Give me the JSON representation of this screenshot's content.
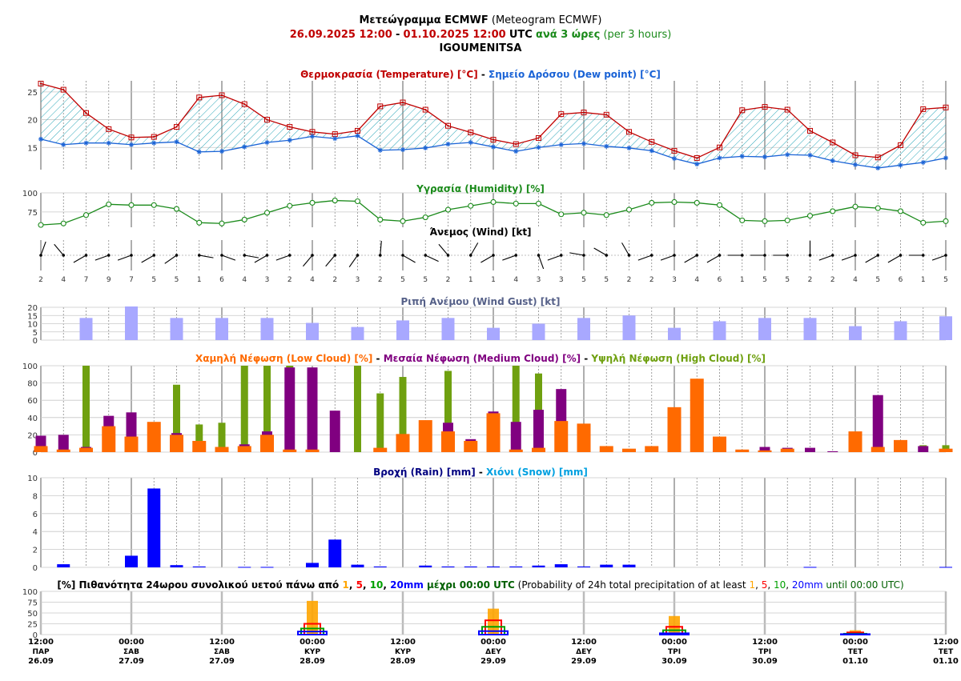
{
  "header": {
    "line1_bold": "Μετεώγραμμα ECMWF",
    "line1_normal": "(Meteogram ECMWF)",
    "line2_start": "26.09.2025 12:00",
    "line2_sep": "-",
    "line2_end": "01.10.2025 12:00",
    "line2_utc": "UTC",
    "line2_step_gr": "ανά 3 ώρες",
    "line2_step_en": "(per 3 hours)",
    "location": "IGOUMENITSA"
  },
  "colors": {
    "temperature": "#c00000",
    "dew": "#1a63d6",
    "humidity": "#1a8a1a",
    "gust": "#a8a8ff",
    "gust_title": "#556088",
    "low_cloud": "#ff6a00",
    "mid_cloud": "#800080",
    "high_cloud": "#6fa010",
    "rain": "#0000ff",
    "rain_title": "#000080",
    "snow_title": "#00a0e0",
    "prob1": "#ffa500",
    "prob5": "#ff0000",
    "prob10": "#00a000",
    "prob20": "#0000ff",
    "prob_title": "#000000"
  },
  "chart_data": [
    {
      "id": "temperature",
      "type": "line",
      "title_parts": [
        {
          "text": "Θερμοκρασία (Temperature) [°C]",
          "color": "#c00000"
        },
        {
          "text": " - ",
          "color": "#000000"
        },
        {
          "text": "Σημείο Δρόσου (Dew point) [°C]",
          "color": "#1a63d6"
        }
      ],
      "ylim": [
        11,
        27
      ],
      "yticks": [
        15,
        20,
        25
      ],
      "series": [
        {
          "name": "Temperature",
          "values": [
            26.5,
            25.4,
            21.2,
            18.3,
            16.8,
            16.9,
            18.7,
            24.0,
            24.4,
            22.8,
            20.0,
            18.7,
            17.8,
            17.4,
            18.0,
            22.4,
            23.1,
            21.8,
            18.9,
            17.7,
            16.4,
            15.6,
            16.7,
            21.0,
            21.3,
            20.9,
            17.8,
            16.0,
            14.4,
            13.1,
            15.0,
            21.7,
            22.3,
            21.8,
            18.0,
            15.9,
            13.6,
            13.2,
            15.4,
            21.9,
            22.2
          ]
        },
        {
          "name": "Dew point",
          "values": [
            16.5,
            15.5,
            15.8,
            15.8,
            15.5,
            15.8,
            16.0,
            14.2,
            14.3,
            15.1,
            15.9,
            16.3,
            17.0,
            16.6,
            17.1,
            14.5,
            14.6,
            14.9,
            15.6,
            15.9,
            15.1,
            14.3,
            15.0,
            15.5,
            15.7,
            15.2,
            14.9,
            14.4,
            13.0,
            12.0,
            13.1,
            13.4,
            13.3,
            13.7,
            13.6,
            12.6,
            11.9,
            11.3,
            11.8,
            12.3,
            13.1
          ]
        }
      ]
    },
    {
      "id": "humidity",
      "type": "line",
      "title_parts": [
        {
          "text": "Υγρασία (Humidity) [%]",
          "color": "#1a8a1a"
        }
      ],
      "ylim": [
        55,
        100
      ],
      "yticks": [
        75,
        100
      ],
      "series": [
        {
          "name": "Humidity",
          "values": [
            58,
            60,
            71,
            85,
            84,
            84,
            79,
            61,
            60,
            65,
            74,
            83,
            87,
            90,
            89,
            65,
            63,
            68,
            78,
            83,
            88,
            86,
            86,
            72,
            74,
            71,
            78,
            87,
            88,
            87,
            84,
            64,
            63,
            64,
            70,
            76,
            82,
            80,
            76,
            61,
            63
          ]
        }
      ]
    },
    {
      "id": "wind",
      "type": "scatter",
      "title_parts": [
        {
          "text": "Άνεμος (Wind) [kt]",
          "color": "#000000"
        }
      ],
      "speeds": [
        "2",
        "4",
        "7",
        "9",
        "7",
        "5",
        "5",
        "1",
        "6",
        "4",
        "3",
        "2",
        "4",
        "2",
        "3",
        "2",
        "5",
        "5",
        "2",
        "1",
        "1",
        "4",
        "3",
        "3",
        "5",
        "5",
        "2",
        "2",
        "3",
        "4",
        "6",
        "1",
        "5",
        "5",
        "2",
        "2",
        "4",
        "5",
        "6",
        "1",
        "5"
      ],
      "directions": [
        20,
        320,
        240,
        250,
        250,
        240,
        235,
        100,
        110,
        100,
        240,
        250,
        220,
        220,
        215,
        5,
        120,
        115,
        320,
        30,
        240,
        250,
        160,
        250,
        280,
        300,
        330,
        250,
        250,
        240,
        240,
        270,
        270,
        270,
        0,
        250,
        250,
        240,
        240,
        270,
        250
      ]
    },
    {
      "id": "gust",
      "type": "bar",
      "title_parts": [
        {
          "text": "Ριπή Ανέμου (Wind Gust) [kt]",
          "color": "#556088"
        }
      ],
      "ylim": [
        0,
        20
      ],
      "yticks": [
        0,
        5,
        10,
        15,
        20
      ],
      "indices": [
        2,
        4,
        6,
        8,
        10,
        12,
        14,
        16,
        18,
        20,
        22,
        24,
        26,
        28,
        30,
        32,
        34,
        36,
        38,
        40
      ],
      "values": [
        13.5,
        20.5,
        13.5,
        13.5,
        13.5,
        10.5,
        8.0,
        12.0,
        13.5,
        7.5,
        10.0,
        13.5,
        15.0,
        7.5,
        11.5,
        13.5,
        13.5,
        8.5,
        11.5,
        14.5
      ]
    },
    {
      "id": "clouds",
      "type": "bar",
      "title_parts": [
        {
          "text": "Χαμηλή Νέφωση (Low Cloud) [%]",
          "color": "#ff6a00"
        },
        {
          "text": " - ",
          "color": "#000000"
        },
        {
          "text": "Μεσαία Νέφωση (Medium Cloud) [%]",
          "color": "#800080"
        },
        {
          "text": " - ",
          "color": "#000000"
        },
        {
          "text": "Υψηλή Νέφωση (High Cloud) [%]",
          "color": "#6fa010"
        }
      ],
      "ylim": [
        0,
        100
      ],
      "yticks": [
        0,
        20,
        40,
        60,
        80,
        100
      ],
      "series": [
        {
          "name": "Low Cloud",
          "values": [
            7,
            3,
            5,
            30,
            18,
            35,
            20,
            13,
            6,
            7,
            20,
            3,
            3,
            0,
            0,
            5,
            21,
            37,
            24,
            13,
            45,
            3,
            5,
            36,
            33,
            7,
            4,
            7,
            52,
            85,
            18,
            3,
            2,
            4,
            0,
            0,
            24,
            6,
            14,
            0,
            4
          ]
        },
        {
          "name": "Medium Cloud",
          "values": [
            19,
            20,
            6,
            42,
            46,
            0,
            22,
            0,
            0,
            9,
            24,
            98,
            98,
            48,
            0,
            0,
            0,
            0,
            34,
            15,
            47,
            35,
            49,
            73,
            0,
            0,
            0,
            0,
            0,
            0,
            0,
            0,
            6,
            5,
            5,
            1,
            0,
            66,
            0,
            7,
            0
          ]
        },
        {
          "name": "High Cloud",
          "values": [
            0,
            0,
            100,
            0,
            0,
            0,
            78,
            32,
            34,
            100,
            100,
            100,
            0,
            0,
            100,
            68,
            87,
            0,
            94,
            0,
            41,
            100,
            91,
            0,
            0,
            0,
            0,
            0,
            0,
            0,
            0,
            0,
            0,
            0,
            0,
            0,
            0,
            0,
            0,
            8,
            8
          ]
        }
      ]
    },
    {
      "id": "rain",
      "type": "bar",
      "title_parts": [
        {
          "text": "Βροχή (Rain) [mm]",
          "color": "#000080"
        },
        {
          "text": " - ",
          "color": "#000000"
        },
        {
          "text": "Χιόνι (Snow) [mm]",
          "color": "#00a0e0"
        }
      ],
      "ylim": [
        0,
        10
      ],
      "yticks": [
        0,
        2,
        4,
        6,
        8,
        10
      ],
      "series": [
        {
          "name": "Rain",
          "values": [
            0,
            0.35,
            0,
            0,
            1.3,
            8.8,
            0.25,
            0.1,
            0,
            0.05,
            0.05,
            0,
            0.5,
            3.1,
            0.3,
            0.1,
            0,
            0.2,
            0.1,
            0.1,
            0.1,
            0.1,
            0.2,
            0.35,
            0.1,
            0.3,
            0.3,
            0,
            0,
            0,
            0,
            0,
            0,
            0,
            0.05,
            0,
            0,
            0,
            0,
            0,
            0.05
          ]
        }
      ]
    },
    {
      "id": "probability",
      "type": "bar",
      "title_parts": [
        {
          "text": "[%] Πιθανότητα 24ωρου συνολικού υετού πάνω από ",
          "color": "#000000",
          "bold": true
        },
        {
          "text": "1",
          "color": "#ffa500",
          "bold": true
        },
        {
          "text": ", ",
          "color": "#000000",
          "bold": true
        },
        {
          "text": "5",
          "color": "#ff0000",
          "bold": true
        },
        {
          "text": ", ",
          "color": "#000000",
          "bold": true
        },
        {
          "text": "10",
          "color": "#00a000",
          "bold": true
        },
        {
          "text": ", ",
          "color": "#000000",
          "bold": true
        },
        {
          "text": "20mm",
          "color": "#0000ff",
          "bold": true
        },
        {
          "text": " μέχρι 00:00 UTC",
          "color": "#006000",
          "bold": true
        },
        {
          "text": " (Probability of 24h total precipitation of at least ",
          "color": "#000000"
        },
        {
          "text": "1",
          "color": "#ffa500"
        },
        {
          "text": ", ",
          "color": "#000000"
        },
        {
          "text": "5",
          "color": "#ff0000"
        },
        {
          "text": ", ",
          "color": "#000000"
        },
        {
          "text": "10",
          "color": "#00a000"
        },
        {
          "text": ", ",
          "color": "#000000"
        },
        {
          "text": "20mm",
          "color": "#0000ff"
        },
        {
          "text": " until 00:00 UTC)",
          "color": "#006000"
        }
      ],
      "ylim": [
        0,
        100
      ],
      "yticks": [
        0,
        25,
        50,
        75,
        100
      ],
      "indices": [
        12,
        20,
        28,
        36
      ],
      "series": [
        {
          "name": "1mm",
          "values": [
            78,
            60,
            43,
            10
          ]
        },
        {
          "name": "5mm",
          "values": [
            25,
            33,
            18,
            5
          ]
        },
        {
          "name": "10mm",
          "values": [
            14,
            18,
            10,
            2
          ]
        },
        {
          "name": "20mm",
          "values": [
            7,
            8,
            3,
            1
          ]
        }
      ]
    }
  ],
  "time_axis": [
    {
      "time": "12:00",
      "day": "ΠΑΡ",
      "date": "26.09"
    },
    {
      "time": "00:00",
      "day": "ΣΑΒ",
      "date": "27.09"
    },
    {
      "time": "12:00",
      "day": "ΣΑΒ",
      "date": "27.09"
    },
    {
      "time": "00:00",
      "day": "ΚΥΡ",
      "date": "28.09"
    },
    {
      "time": "12:00",
      "day": "ΚΥΡ",
      "date": "28.09"
    },
    {
      "time": "00:00",
      "day": "ΔΕΥ",
      "date": "29.09"
    },
    {
      "time": "12:00",
      "day": "ΔΕΥ",
      "date": "29.09"
    },
    {
      "time": "00:00",
      "day": "ΤΡΙ",
      "date": "30.09"
    },
    {
      "time": "12:00",
      "day": "ΤΡΙ",
      "date": "30.09"
    },
    {
      "time": "00:00",
      "day": "ΤΕΤ",
      "date": "01.10"
    },
    {
      "time": "12:00",
      "day": "ΤΕΤ",
      "date": "01.10"
    }
  ]
}
